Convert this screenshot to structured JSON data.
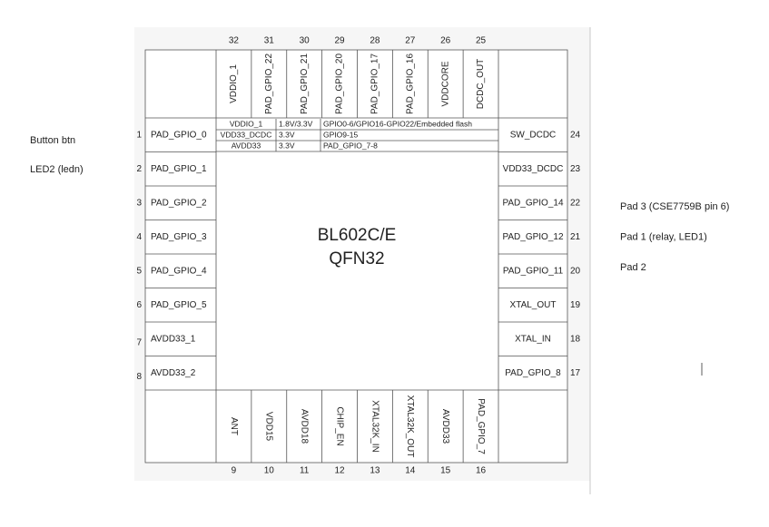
{
  "top_pins": [
    {
      "number": 32,
      "label": "VDDIO_1"
    },
    {
      "number": 31,
      "label": "PAD_GPIO_22"
    },
    {
      "number": 30,
      "label": "PAD_GPIO_21"
    },
    {
      "number": 29,
      "label": "PAD_GPIO_20"
    },
    {
      "number": 28,
      "label": "PAD_GPIO_17"
    },
    {
      "number": 27,
      "label": "PAD_GPIO_16"
    },
    {
      "number": 26,
      "label": "VDDCORE"
    },
    {
      "number": 25,
      "label": "DCDC_OUT"
    }
  ],
  "left_pins": [
    {
      "number": 1,
      "label": "PAD_GPIO_0"
    },
    {
      "number": 2,
      "label": "PAD_GPIO_1"
    },
    {
      "number": 3,
      "label": "PAD_GPIO_2"
    },
    {
      "number": 4,
      "label": "PAD_GPIO_3"
    },
    {
      "number": 5,
      "label": "PAD_GPIO_4"
    },
    {
      "number": 6,
      "label": "PAD_GPIO_5"
    },
    {
      "number": 7,
      "label": "AVDD33_1"
    },
    {
      "number": 8,
      "label": "AVDD33_2"
    }
  ],
  "right_pins": [
    {
      "number": 24,
      "label": "SW_DCDC"
    },
    {
      "number": 23,
      "label": "VDD33_DCDC"
    },
    {
      "number": 22,
      "label": "PAD_GPIO_14"
    },
    {
      "number": 21,
      "label": "PAD_GPIO_12"
    },
    {
      "number": 20,
      "label": "PAD_GPIO_11"
    },
    {
      "number": 19,
      "label": "XTAL_OUT"
    },
    {
      "number": 18,
      "label": "XTAL_IN"
    },
    {
      "number": 17,
      "label": "PAD_GPIO_8"
    }
  ],
  "bottom_pins": [
    {
      "number": 9,
      "label": "ANT"
    },
    {
      "number": 10,
      "label": "VDD15"
    },
    {
      "number": 11,
      "label": "AVDD18"
    },
    {
      "number": 12,
      "label": "CHIP_EN"
    },
    {
      "number": 13,
      "label": "XTAL32K_IN"
    },
    {
      "number": 14,
      "label": "XTAL32K_OUT"
    },
    {
      "number": 15,
      "label": "AVDD33"
    },
    {
      "number": 16,
      "label": "PAD_GPIO_7"
    }
  ],
  "power_table": {
    "rows": [
      [
        "VDDIO_1",
        "1.8V/3.3V",
        "GPIO0-6/GPIO16-GPIO22/Embedded flash"
      ],
      [
        "VDD33_DCDC",
        "3.3V",
        "GPIO9-15"
      ],
      [
        "AVDD33",
        "3.3V",
        "PAD_GPIO_7-8"
      ]
    ]
  },
  "chip": {
    "name": "BL602C/E",
    "package": "QFN32"
  },
  "notes_left": [
    "Button btn",
    "LED2 (ledn)"
  ],
  "notes_right": [
    "Pad 3 (CSE7759B pin 6)",
    "Pad 1  (relay, LED1)",
    "Pad 2"
  ]
}
